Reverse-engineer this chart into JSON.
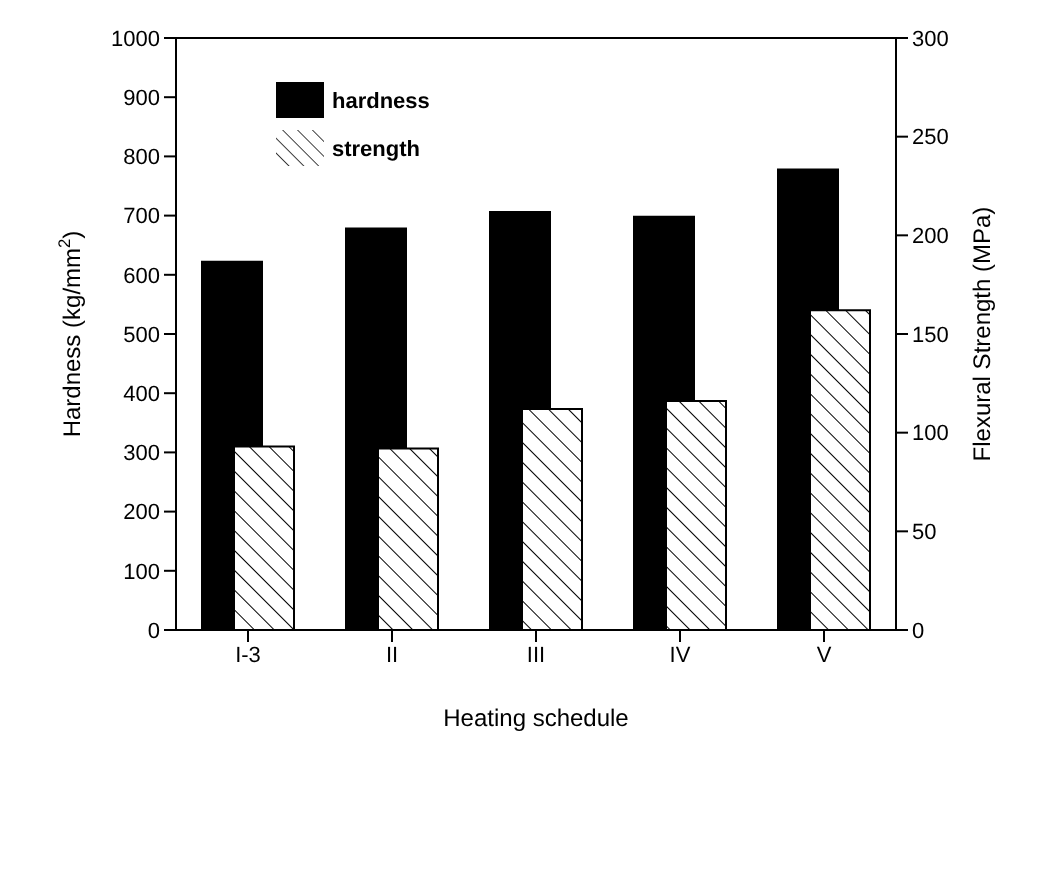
{
  "chart_data": {
    "type": "bar",
    "xlabel": "Heating schedule",
    "ylabel": "Hardness (kg/mm$^{2}$)",
    "y2label": "Flexural Strength (MPa)",
    "categories": [
      "I-3",
      "II",
      "III",
      "IV",
      "V"
    ],
    "series": [
      {
        "name": "hardness",
        "color": "#000000",
        "values": [
          622,
          678,
          706,
          698,
          778
        ]
      },
      {
        "name": "strength",
        "color": "#000000",
        "axis": "y2",
        "values": [
          93,
          92,
          112,
          116,
          162
        ]
      }
    ],
    "ylim": [
      0,
      1000
    ],
    "yticks": [
      0,
      100,
      200,
      300,
      400,
      500,
      600,
      700,
      800,
      900,
      1000
    ],
    "y2lim": [
      0,
      300
    ],
    "y2ticks": [
      0,
      50,
      100,
      150,
      200,
      250,
      300
    ],
    "grid": false,
    "legend": "top left"
  }
}
